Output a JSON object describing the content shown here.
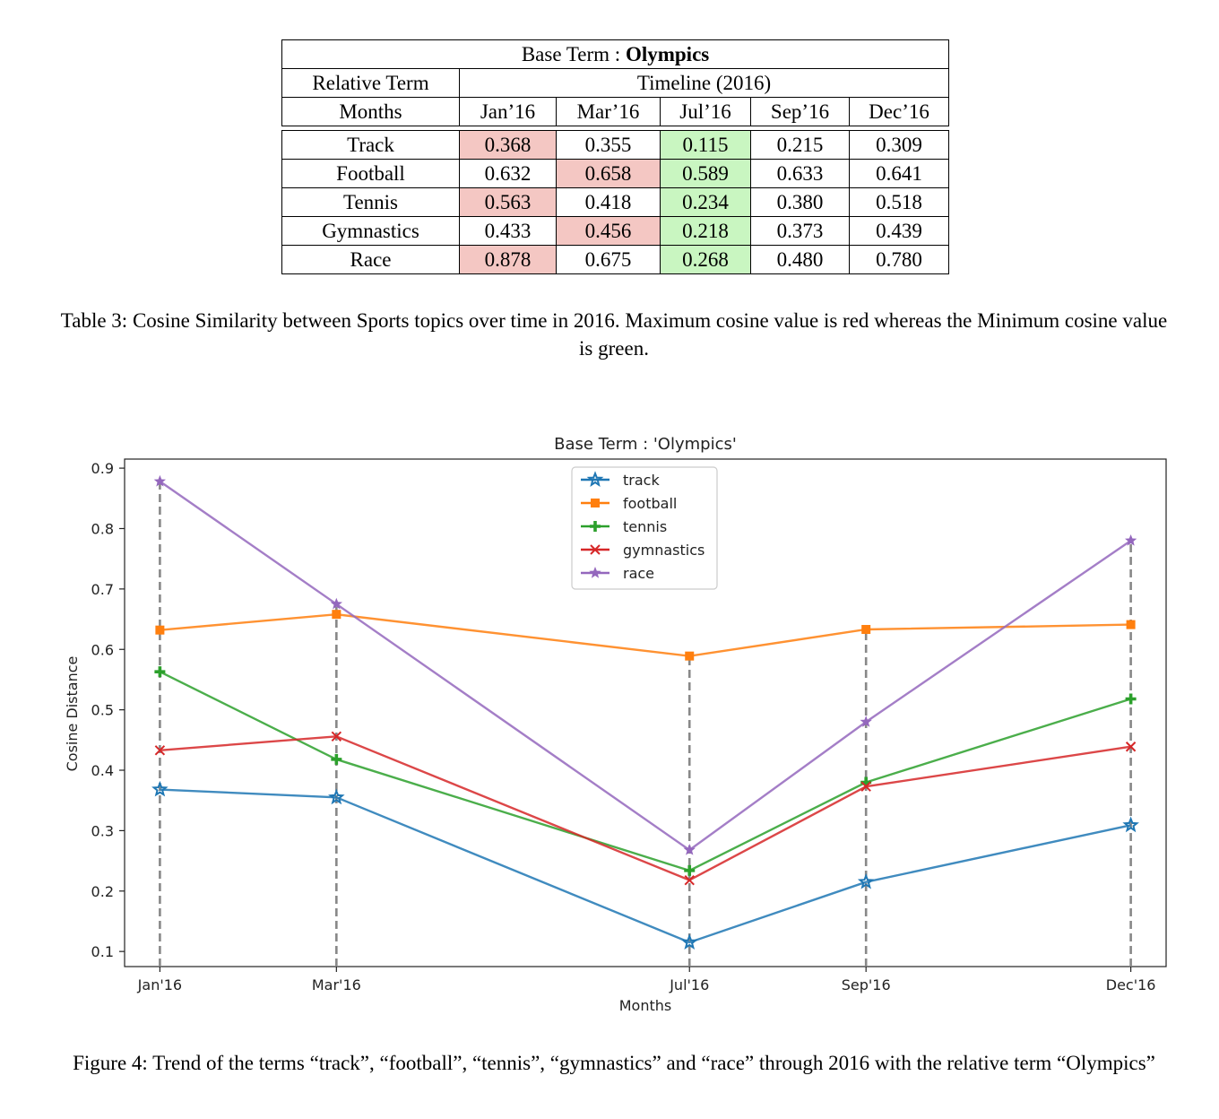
{
  "table": {
    "base_term_label": "Base Term :",
    "base_term_value": "Olympics",
    "relative_term_label": "Relative Term",
    "timeline_label": "Timeline (2016)",
    "months_label": "Months",
    "months": [
      "Jan’16",
      "Mar’16",
      "Jul’16",
      "Sep’16",
      "Dec’16"
    ],
    "rows": [
      {
        "term": "Track",
        "values": [
          "0.368",
          "0.355",
          "0.115",
          "0.215",
          "0.309"
        ],
        "max_index": 0,
        "min_index": 2
      },
      {
        "term": "Football",
        "values": [
          "0.632",
          "0.658",
          "0.589",
          "0.633",
          "0.641"
        ],
        "max_index": 1,
        "min_index": 2
      },
      {
        "term": "Tennis",
        "values": [
          "0.563",
          "0.418",
          "0.234",
          "0.380",
          "0.518"
        ],
        "max_index": 0,
        "min_index": 2
      },
      {
        "term": "Gymnastics",
        "values": [
          "0.433",
          "0.456",
          "0.218",
          "0.373",
          "0.439"
        ],
        "max_index": 1,
        "min_index": 2
      },
      {
        "term": "Race",
        "values": [
          "0.878",
          "0.675",
          "0.268",
          "0.480",
          "0.780"
        ],
        "max_index": 0,
        "min_index": 2
      }
    ],
    "max_color": "#f4c7c3",
    "min_color": "#c9f6c1",
    "caption": "Table 3: Cosine Similarity between Sports topics over time in 2016. Maximum cosine value is red whereas the Minimum cosine value is green."
  },
  "chart_data": {
    "type": "line",
    "title": "Base Term : 'Olympics'",
    "xlabel": "Months",
    "ylabel": "Cosine Distance",
    "categories": [
      "Jan'16",
      "Mar'16",
      "Jul'16",
      "Sep'16",
      "Dec'16"
    ],
    "x": [
      1,
      3,
      7,
      9,
      12
    ],
    "yticks": [
      0.1,
      0.2,
      0.3,
      0.4,
      0.5,
      0.6,
      0.7,
      0.8,
      0.9
    ],
    "ylim": [
      0.075,
      0.915
    ],
    "grid": false,
    "vertical_dashed_lines": true,
    "legend_position": "upper center",
    "series": [
      {
        "name": "track",
        "color": "#1f77b4",
        "marker": "star-hollow",
        "values": [
          0.368,
          0.355,
          0.115,
          0.215,
          0.309
        ]
      },
      {
        "name": "football",
        "color": "#ff7f0e",
        "marker": "square",
        "values": [
          0.632,
          0.658,
          0.589,
          0.633,
          0.641
        ]
      },
      {
        "name": "tennis",
        "color": "#2ca02c",
        "marker": "plus",
        "values": [
          0.563,
          0.418,
          0.234,
          0.38,
          0.518
        ]
      },
      {
        "name": "gymnastics",
        "color": "#d62728",
        "marker": "x",
        "values": [
          0.433,
          0.456,
          0.218,
          0.373,
          0.439
        ]
      },
      {
        "name": "race",
        "color": "#9467bd",
        "marker": "star",
        "values": [
          0.878,
          0.675,
          0.268,
          0.48,
          0.78
        ]
      }
    ]
  },
  "figure": {
    "caption": "Figure 4: Trend of the terms “track”, “football”, “tennis”, “gymnastics” and “race” through 2016 with the relative term “Olympics”"
  }
}
